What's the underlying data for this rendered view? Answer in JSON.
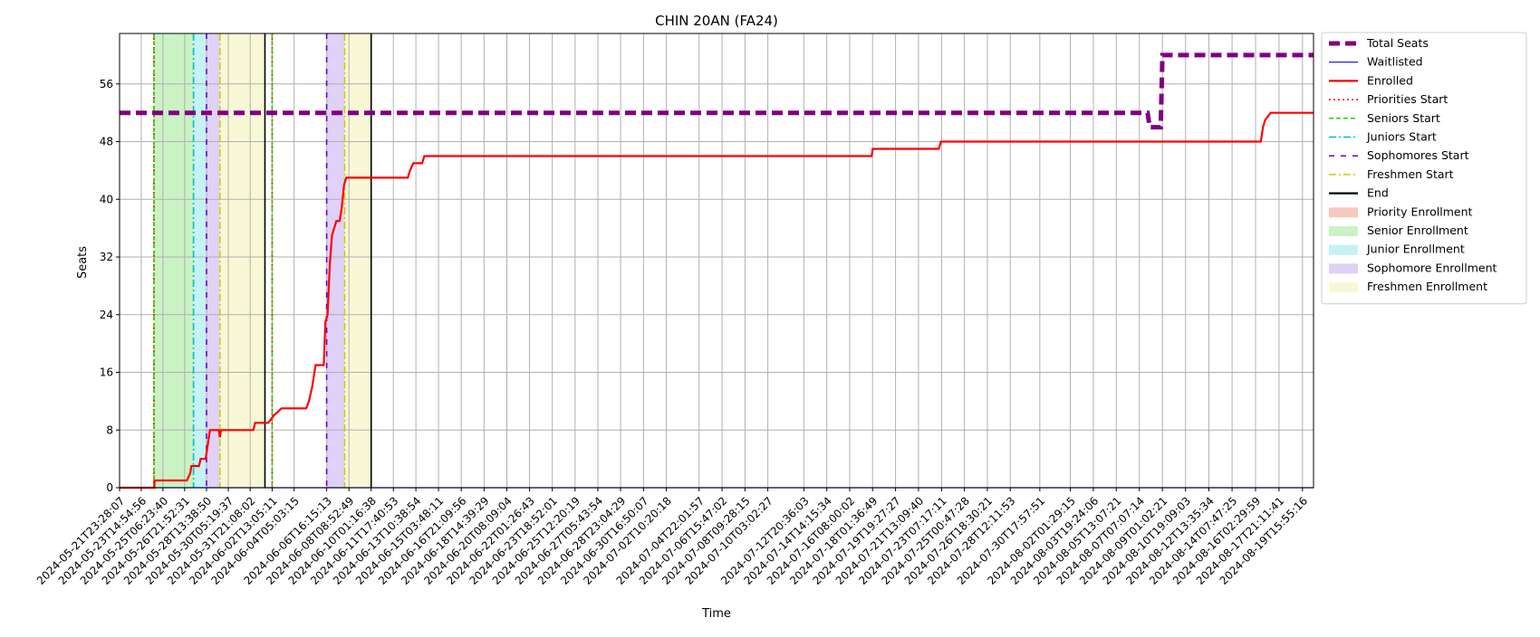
{
  "chart_data": {
    "type": "line",
    "title": "CHIN 20AN (FA24)",
    "xlabel": "Time",
    "ylabel": "Seats",
    "ylim": [
      0,
      63
    ],
    "y_ticks": [
      0,
      8,
      16,
      24,
      32,
      40,
      48,
      56
    ],
    "x_range": [
      "2024-05-21T23:28:07",
      "2024-08-20T12:00:00"
    ],
    "grid": true,
    "legend_position": "outside-right-top",
    "x_ticks": [
      "2024-05-21T23:28:07",
      "2024-05-23T14:54:56",
      "2024-05-25T06:23:40",
      "2024-05-26T21:52:31",
      "2024-05-28T13:38:50",
      "2024-05-30T05:19:37",
      "2024-05-31T21:08:02",
      "2024-06-02T13:05:11",
      "2024-06-04T05:03:15",
      "2024-06-06T16:15:13",
      "2024-06-08T08:52:49",
      "2024-06-10T01:16:38",
      "2024-06-11T17:40:53",
      "2024-06-13T10:38:54",
      "2024-06-15T03:48:11",
      "2024-06-16T21:09:56",
      "2024-06-18T14:39:29",
      "2024-06-20T08:09:04",
      "2024-06-22T01:26:43",
      "2024-06-23T18:52:01",
      "2024-06-25T12:20:19",
      "2024-06-27T05:43:54",
      "2024-06-28T23:04:29",
      "2024-06-30T16:50:07",
      "2024-07-02T10:20:18",
      "2024-07-04T22:01:57",
      "2024-07-06T15:47:02",
      "2024-07-08T09:28:15",
      "2024-07-10T03:02:27",
      "2024-07-12T20:36:03",
      "2024-07-14T14:15:34",
      "2024-07-16T08:00:02",
      "2024-07-18T01:36:49",
      "2024-07-19T19:27:27",
      "2024-07-21T13:09:40",
      "2024-07-23T07:17:11",
      "2024-07-25T00:47:28",
      "2024-07-26T18:30:21",
      "2024-07-28T12:11:53",
      "2024-07-30T17:57:51",
      "2024-08-02T01:29:15",
      "2024-08-03T19:24:06",
      "2024-08-05T13:07:21",
      "2024-08-07T07:07:14",
      "2024-08-09T01:02:21",
      "2024-08-10T19:09:03",
      "2024-08-12T13:35:34",
      "2024-08-14T07:47:25",
      "2024-08-16T02:29:59",
      "2024-08-17T21:11:41",
      "2024-08-19T15:55:16"
    ],
    "series": [
      {
        "name": "Total Seats",
        "color": "#800080",
        "style": "dashed-thick",
        "points": [
          [
            "2024-05-21T23:28:07",
            52
          ],
          [
            "2024-08-07T22:00:00",
            52
          ],
          [
            "2024-08-08T02:00:00",
            50
          ],
          [
            "2024-08-08T22:00:00",
            50
          ],
          [
            "2024-08-09T01:02:21",
            60
          ],
          [
            "2024-08-20T12:00:00",
            60
          ]
        ]
      },
      {
        "name": "Waitlisted",
        "color": "#0000ff",
        "style": "solid-thin",
        "points": [
          [
            "2024-05-21T23:28:07",
            0
          ],
          [
            "2024-08-20T12:00:00",
            0
          ]
        ]
      },
      {
        "name": "Enrolled",
        "color": "#ff0000",
        "style": "solid",
        "points": [
          [
            "2024-05-21T23:28:07",
            0
          ],
          [
            "2024-05-24T15:00:00",
            0
          ],
          [
            "2024-05-24T15:00:01",
            1
          ],
          [
            "2024-05-27T02:00:00",
            1
          ],
          [
            "2024-05-27T08:00:00",
            2
          ],
          [
            "2024-05-27T10:00:00",
            3
          ],
          [
            "2024-05-28T00:00:00",
            3
          ],
          [
            "2024-05-28T03:00:00",
            4
          ],
          [
            "2024-05-28T12:00:00",
            4
          ],
          [
            "2024-05-28T18:00:00",
            7
          ],
          [
            "2024-05-28T20:00:00",
            8
          ],
          [
            "2024-05-29T12:00:00",
            8
          ],
          [
            "2024-05-29T14:00:00",
            7
          ],
          [
            "2024-05-29T16:00:00",
            8
          ],
          [
            "2024-06-01T03:00:00",
            8
          ],
          [
            "2024-06-01T06:00:00",
            9
          ],
          [
            "2024-06-02T06:00:00",
            9
          ],
          [
            "2024-06-02T16:00:00",
            10
          ],
          [
            "2024-06-03T06:00:00",
            11
          ],
          [
            "2024-06-05T03:00:00",
            11
          ],
          [
            "2024-06-05T08:00:00",
            12
          ],
          [
            "2024-06-05T14:00:00",
            14
          ],
          [
            "2024-06-05T20:00:00",
            17
          ],
          [
            "2024-06-06T11:00:00",
            17
          ],
          [
            "2024-06-06T14:00:00",
            23
          ],
          [
            "2024-06-06T18:00:00",
            24
          ],
          [
            "2024-06-06T22:00:00",
            31
          ],
          [
            "2024-06-07T02:00:00",
            35
          ],
          [
            "2024-06-07T06:00:00",
            36
          ],
          [
            "2024-06-07T10:00:00",
            37
          ],
          [
            "2024-06-07T16:00:00",
            37
          ],
          [
            "2024-06-07T20:00:00",
            39
          ],
          [
            "2024-06-08T00:00:00",
            42
          ],
          [
            "2024-06-08T04:00:00",
            43
          ],
          [
            "2024-06-12T20:00:00",
            43
          ],
          [
            "2024-06-13T00:00:00",
            44
          ],
          [
            "2024-06-13T06:00:00",
            45
          ],
          [
            "2024-06-13T22:00:00",
            45
          ],
          [
            "2024-06-14T02:00:00",
            46
          ],
          [
            "2024-07-18T00:00:00",
            46
          ],
          [
            "2024-07-18T02:00:00",
            47
          ],
          [
            "2024-07-23T02:00:00",
            47
          ],
          [
            "2024-07-23T06:00:00",
            48
          ],
          [
            "2024-08-16T12:00:00",
            48
          ],
          [
            "2024-08-16T16:00:00",
            50
          ],
          [
            "2024-08-16T20:00:00",
            51
          ],
          [
            "2024-08-17T06:00:00",
            52
          ],
          [
            "2024-08-20T12:00:00",
            52
          ]
        ]
      }
    ],
    "markers": [
      {
        "name": "Priorities Start",
        "color": "#ff0000",
        "style": "dotted",
        "x": [
          "2024-05-24T14:00:00",
          "2024-06-02T13:05:11"
        ]
      },
      {
        "name": "Seniors Start",
        "color": "#33cc00",
        "style": "dashed",
        "x": [
          "2024-05-24T14:00:00",
          "2024-06-02T13:05:11"
        ]
      },
      {
        "name": "Juniors Start",
        "color": "#00bfbf",
        "style": "dashdot",
        "x": [
          "2024-05-27T14:00:00"
        ]
      },
      {
        "name": "Sophomores Start",
        "color": "#6600cc",
        "style": "loosedash",
        "x": [
          "2024-05-28T13:38:50",
          "2024-06-06T16:15:13"
        ]
      },
      {
        "name": "Freshmen Start",
        "color": "#cccc00",
        "style": "dashdot",
        "x": [
          "2024-05-29T14:00:00",
          "2024-06-08T01:00:00"
        ]
      },
      {
        "name": "End",
        "color": "#000000",
        "style": "solid",
        "x": [
          "2024-06-02T00:00:00",
          "2024-06-10T01:16:38"
        ]
      }
    ],
    "bands": [
      {
        "name": "Priority Enrollment",
        "color": "#f4b6a6",
        "ranges": []
      },
      {
        "name": "Senior Enrollment",
        "color": "#b8eeb0",
        "ranges": [
          [
            "2024-05-24T14:00:00",
            "2024-05-27T14:00:00"
          ]
        ]
      },
      {
        "name": "Junior Enrollment",
        "color": "#b0eef2",
        "ranges": [
          [
            "2024-05-27T14:00:00",
            "2024-05-28T13:38:50"
          ]
        ]
      },
      {
        "name": "Sophomore Enrollment",
        "color": "#d4c2f4",
        "ranges": [
          [
            "2024-05-28T13:38:50",
            "2024-05-29T14:00:00"
          ],
          [
            "2024-06-06T16:15:13",
            "2024-06-08T01:00:00"
          ]
        ]
      },
      {
        "name": "Freshmen Enrollment",
        "color": "#f6f6c8",
        "ranges": [
          [
            "2024-05-29T14:00:00",
            "2024-06-02T00:00:00"
          ],
          [
            "2024-06-08T01:00:00",
            "2024-06-10T01:16:38"
          ]
        ]
      }
    ],
    "legend": [
      {
        "label": "Total Seats",
        "kind": "line",
        "color": "#800080",
        "style": "dashed-thick"
      },
      {
        "label": "Waitlisted",
        "kind": "line",
        "color": "#0000ff",
        "style": "solid-thin"
      },
      {
        "label": "Enrolled",
        "kind": "line",
        "color": "#ff0000",
        "style": "solid"
      },
      {
        "label": "Priorities Start",
        "kind": "line",
        "color": "#ff0000",
        "style": "dotted"
      },
      {
        "label": "Seniors Start",
        "kind": "line",
        "color": "#33cc00",
        "style": "dashed"
      },
      {
        "label": "Juniors Start",
        "kind": "line",
        "color": "#00bfbf",
        "style": "dashdot"
      },
      {
        "label": "Sophomores Start",
        "kind": "line",
        "color": "#6600cc",
        "style": "loosedash"
      },
      {
        "label": "Freshmen Start",
        "kind": "line",
        "color": "#cccc00",
        "style": "dashdot"
      },
      {
        "label": "End",
        "kind": "line",
        "color": "#000000",
        "style": "solid"
      },
      {
        "label": "Priority Enrollment",
        "kind": "patch",
        "color": "#f4b6a6"
      },
      {
        "label": "Senior Enrollment",
        "kind": "patch",
        "color": "#b8eeb0"
      },
      {
        "label": "Junior Enrollment",
        "kind": "patch",
        "color": "#b0eef2"
      },
      {
        "label": "Sophomore Enrollment",
        "kind": "patch",
        "color": "#d4c2f4"
      },
      {
        "label": "Freshmen Enrollment",
        "kind": "patch",
        "color": "#f6f6c8"
      }
    ]
  }
}
